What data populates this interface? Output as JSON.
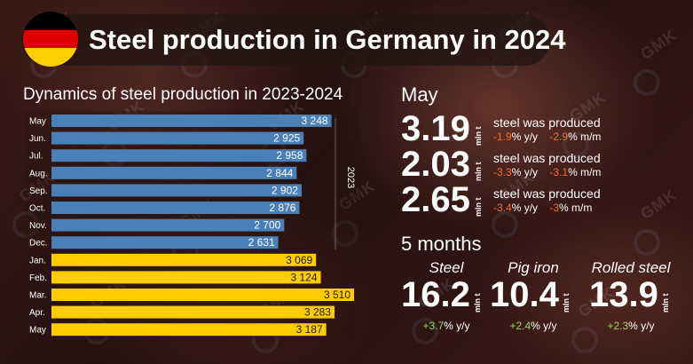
{
  "title": "Steel production in Germany in 2024",
  "flag_colors": [
    "#000000",
    "#dd0000",
    "#ffce00"
  ],
  "watermark": "GMK",
  "colors": {
    "bars_2023": "#4a80b8",
    "bars_2024": "#ffcc00",
    "negative": "#ff6a2a",
    "positive": "#9ad56a"
  },
  "chart_data": {
    "type": "bar",
    "orientation": "horizontal",
    "title": "Dynamics of steel production in 2023-2024",
    "year_label": "2023",
    "categories": [
      "May",
      "Jun.",
      "Jul.",
      "Aug.",
      "Sep.",
      "Oct.",
      "Nov.",
      "Dec.",
      "Jan.",
      "Feb.",
      "Mar.",
      "Apr.",
      "May"
    ],
    "values": [
      3248,
      2925,
      2958,
      2844,
      2902,
      2876,
      2700,
      2631,
      3069,
      3124,
      3510,
      3283,
      3187
    ],
    "value_labels": [
      "3 248",
      "2 925",
      "2 958",
      "2 844",
      "2 902",
      "2 876",
      "2 700",
      "2 631",
      "3 069",
      "3 124",
      "3 510",
      "3 283",
      "3 187"
    ],
    "series_index": [
      0,
      0,
      0,
      0,
      0,
      0,
      0,
      0,
      1,
      1,
      1,
      1,
      1
    ],
    "xlim": [
      0,
      3520
    ]
  },
  "may": {
    "heading": "May",
    "rows": [
      {
        "value": "3.19",
        "unit": "mln t",
        "caption": "steel was produced",
        "yy_num": "-1.9",
        "yy_sfx": "% y/y",
        "mm_num": "-2.9",
        "mm_sfx": "% m/m"
      },
      {
        "value": "2.03",
        "unit": "mln t",
        "caption": "steel was produced",
        "yy_num": "-3.3",
        "yy_sfx": "% y/y",
        "mm_num": "-3.1",
        "mm_sfx": "% m/m"
      },
      {
        "value": "2.65",
        "unit": "mln t",
        "caption": "steel was produced",
        "yy_num": "-3.4",
        "yy_sfx": "% y/y",
        "mm_num": "-3",
        "mm_sfx": "% m/m"
      }
    ]
  },
  "five_months": {
    "heading": "5 months",
    "items": [
      {
        "label": "Steel",
        "value": "16.2",
        "unit": "mln t",
        "change_num": "+3.7",
        "change_sfx": "% y/y"
      },
      {
        "label": "Pig iron",
        "value": "10.4",
        "unit": "mln t",
        "change_num": "+2.4",
        "change_sfx": "% y/y"
      },
      {
        "label": "Rolled steel",
        "value": "13.9",
        "unit": "mln t",
        "change_num": "+2.3",
        "change_sfx": "% y/y"
      }
    ]
  }
}
